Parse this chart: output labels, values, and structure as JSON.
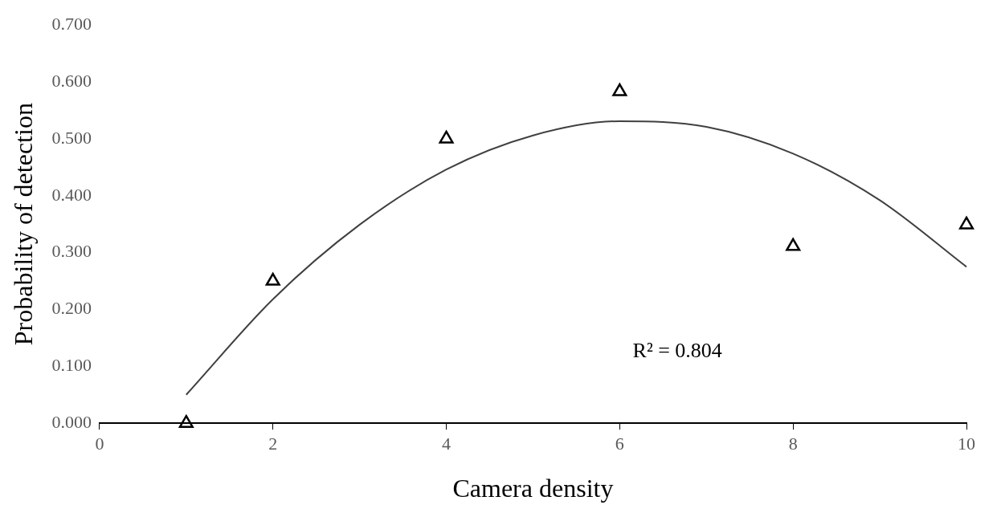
{
  "chart_data": {
    "type": "scatter",
    "xlabel": "Camera density",
    "ylabel": "Probability of detection",
    "xlim": [
      0,
      10
    ],
    "xticks": [
      0,
      2,
      4,
      6,
      8,
      10
    ],
    "ylim": [
      0,
      0.7
    ],
    "yticks": [
      {
        "value": 0,
        "label": "0.000"
      },
      {
        "value": 0.1,
        "label": "0.100"
      },
      {
        "value": 0.2,
        "label": "0.200"
      },
      {
        "value": 0.3,
        "label": "0.300"
      },
      {
        "value": 0.4,
        "label": "0.400"
      },
      {
        "value": 0.5,
        "label": "0.500"
      },
      {
        "value": 0.6,
        "label": "0.600"
      },
      {
        "value": 0.7,
        "label": "0.700"
      }
    ],
    "grid": false,
    "legend": false,
    "series": [
      {
        "type": "scatter",
        "color": "#000000",
        "marker": "triangle",
        "x": [
          1,
          2,
          4,
          6,
          8,
          10
        ],
        "values": [
          0,
          0.25,
          0.5,
          0.583,
          0.311,
          0.349
        ]
      },
      {
        "type": "line",
        "color": "#404040",
        "marker": "none",
        "line_style": "solid",
        "x": [
          1,
          2,
          3,
          4,
          5,
          6,
          7,
          8,
          9,
          10
        ],
        "values": [
          0.05,
          0.218,
          0.349,
          0.446,
          0.506,
          0.531,
          0.521,
          0.474,
          0.392,
          0.275
        ]
      }
    ],
    "annotations": [
      "R² = 0.804"
    ]
  }
}
